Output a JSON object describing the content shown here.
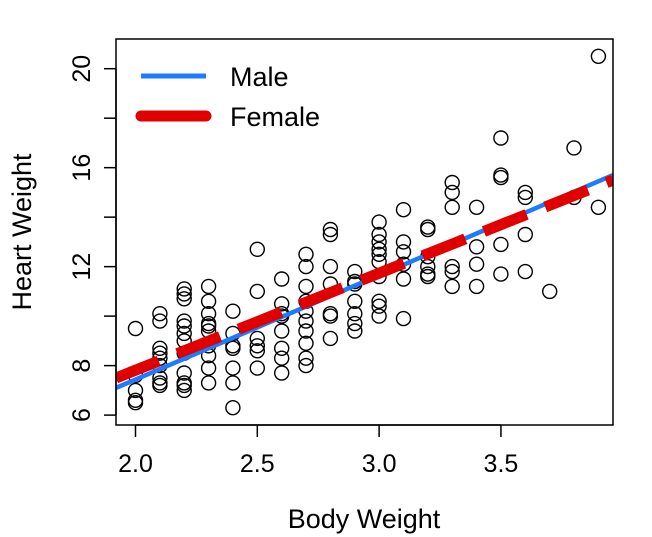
{
  "chart_data": {
    "type": "scatter",
    "xlabel": "Body Weight",
    "ylabel": "Heart Weight",
    "xlim": [
      1.92,
      3.96
    ],
    "ylim": [
      5.6,
      21.2
    ],
    "x_ticks": [
      {
        "value": 2.0,
        "label": "2.0"
      },
      {
        "value": 2.5,
        "label": "2.5"
      },
      {
        "value": 3.0,
        "label": "3.0"
      },
      {
        "value": 3.5,
        "label": "3.5"
      }
    ],
    "y_ticks": [
      {
        "value": 6,
        "label": "6"
      },
      {
        "value": 8,
        "label": "8"
      },
      {
        "value": 10,
        "label": ""
      },
      {
        "value": 12,
        "label": "12"
      },
      {
        "value": 14,
        "label": ""
      },
      {
        "value": 16,
        "label": "16"
      },
      {
        "value": 18,
        "label": ""
      },
      {
        "value": 20,
        "label": "20"
      }
    ],
    "grid": false,
    "legend": {
      "position": "top-left",
      "entries": [
        {
          "name": "Male",
          "color": "#1E7BFF",
          "style": "solid"
        },
        {
          "name": "Female",
          "color": "#E00000",
          "style": "dashed"
        }
      ]
    },
    "points": [
      [
        2.0,
        6.5
      ],
      [
        2.0,
        6.6
      ],
      [
        2.0,
        7.0
      ],
      [
        2.0,
        7.6
      ],
      [
        2.0,
        9.5
      ],
      [
        2.1,
        7.2
      ],
      [
        2.1,
        7.3
      ],
      [
        2.1,
        7.5
      ],
      [
        2.1,
        8.0
      ],
      [
        2.1,
        8.3
      ],
      [
        2.1,
        8.5
      ],
      [
        2.1,
        8.7
      ],
      [
        2.1,
        9.8
      ],
      [
        2.1,
        10.1
      ],
      [
        2.2,
        7.0
      ],
      [
        2.2,
        7.2
      ],
      [
        2.2,
        7.3
      ],
      [
        2.2,
        7.7
      ],
      [
        2.2,
        8.5
      ],
      [
        2.2,
        9.0
      ],
      [
        2.2,
        9.3
      ],
      [
        2.2,
        9.6
      ],
      [
        2.2,
        9.8
      ],
      [
        2.2,
        10.7
      ],
      [
        2.2,
        10.9
      ],
      [
        2.2,
        11.1
      ],
      [
        2.3,
        7.3
      ],
      [
        2.3,
        7.9
      ],
      [
        2.3,
        8.4
      ],
      [
        2.3,
        8.8
      ],
      [
        2.3,
        9.4
      ],
      [
        2.3,
        9.6
      ],
      [
        2.3,
        9.7
      ],
      [
        2.3,
        10.1
      ],
      [
        2.3,
        10.6
      ],
      [
        2.3,
        11.2
      ],
      [
        2.4,
        6.3
      ],
      [
        2.4,
        7.3
      ],
      [
        2.4,
        7.9
      ],
      [
        2.4,
        8.7
      ],
      [
        2.4,
        8.8
      ],
      [
        2.4,
        9.3
      ],
      [
        2.4,
        10.2
      ],
      [
        2.5,
        7.9
      ],
      [
        2.5,
        8.6
      ],
      [
        2.5,
        8.8
      ],
      [
        2.5,
        9.1
      ],
      [
        2.5,
        11.0
      ],
      [
        2.5,
        12.7
      ],
      [
        2.6,
        7.7
      ],
      [
        2.6,
        8.3
      ],
      [
        2.6,
        8.7
      ],
      [
        2.6,
        9.4
      ],
      [
        2.6,
        10.0
      ],
      [
        2.6,
        10.1
      ],
      [
        2.6,
        10.5
      ],
      [
        2.6,
        11.5
      ],
      [
        2.7,
        8.0
      ],
      [
        2.7,
        8.3
      ],
      [
        2.7,
        8.9
      ],
      [
        2.7,
        9.4
      ],
      [
        2.7,
        9.8
      ],
      [
        2.7,
        10.2
      ],
      [
        2.7,
        10.6
      ],
      [
        2.7,
        11.2
      ],
      [
        2.7,
        12.0
      ],
      [
        2.7,
        12.5
      ],
      [
        2.8,
        9.1
      ],
      [
        2.8,
        10.0
      ],
      [
        2.8,
        10.1
      ],
      [
        2.8,
        11.3
      ],
      [
        2.8,
        12.0
      ],
      [
        2.8,
        13.3
      ],
      [
        2.8,
        13.5
      ],
      [
        2.9,
        9.4
      ],
      [
        2.9,
        9.7
      ],
      [
        2.9,
        10.1
      ],
      [
        2.9,
        10.6
      ],
      [
        2.9,
        11.3
      ],
      [
        2.9,
        11.4
      ],
      [
        2.9,
        11.8
      ],
      [
        3.0,
        10.0
      ],
      [
        3.0,
        10.4
      ],
      [
        3.0,
        10.6
      ],
      [
        3.0,
        11.6
      ],
      [
        3.0,
        12.2
      ],
      [
        3.0,
        12.5
      ],
      [
        3.0,
        12.7
      ],
      [
        3.0,
        13.0
      ],
      [
        3.0,
        13.3
      ],
      [
        3.0,
        13.8
      ],
      [
        3.1,
        9.9
      ],
      [
        3.1,
        11.5
      ],
      [
        3.1,
        12.1
      ],
      [
        3.1,
        12.6
      ],
      [
        3.1,
        13.0
      ],
      [
        3.1,
        14.3
      ],
      [
        3.2,
        11.6
      ],
      [
        3.2,
        11.7
      ],
      [
        3.2,
        12.0
      ],
      [
        3.2,
        12.4
      ],
      [
        3.2,
        13.5
      ],
      [
        3.2,
        13.6
      ],
      [
        3.3,
        11.2
      ],
      [
        3.3,
        11.8
      ],
      [
        3.3,
        12.0
      ],
      [
        3.3,
        14.4
      ],
      [
        3.3,
        15.0
      ],
      [
        3.3,
        15.4
      ],
      [
        3.4,
        11.2
      ],
      [
        3.4,
        12.1
      ],
      [
        3.4,
        12.8
      ],
      [
        3.4,
        14.4
      ],
      [
        3.5,
        11.7
      ],
      [
        3.5,
        12.9
      ],
      [
        3.5,
        15.6
      ],
      [
        3.5,
        15.7
      ],
      [
        3.5,
        17.2
      ],
      [
        3.6,
        11.8
      ],
      [
        3.6,
        13.3
      ],
      [
        3.6,
        14.8
      ],
      [
        3.6,
        15.0
      ],
      [
        3.7,
        11.0
      ],
      [
        3.8,
        14.8
      ],
      [
        3.8,
        16.8
      ],
      [
        3.9,
        14.4
      ],
      [
        3.9,
        20.5
      ]
    ],
    "lines": [
      {
        "name": "Male",
        "x": [
          1.92,
          3.96
        ],
        "y": [
          7.1,
          15.7
        ]
      },
      {
        "name": "Female",
        "x": [
          1.92,
          3.96
        ],
        "y": [
          7.5,
          15.5
        ]
      }
    ]
  }
}
